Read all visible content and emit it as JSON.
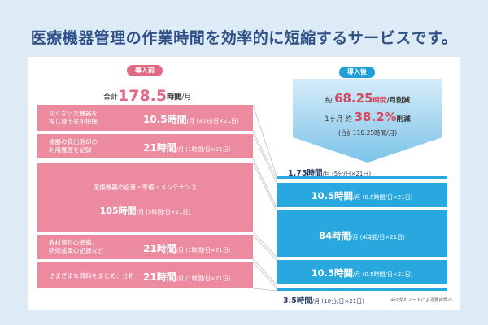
{
  "title": "医療機器管理の作業時間を効率的に短縮するサービスです。",
  "before": {
    "tag": "導入前",
    "total_prefix": "合計",
    "total_value": "178.5",
    "total_unit": "時間",
    "total_suffix": "/月",
    "rows": [
      {
        "label": "なくなった機器を\n探し貸出先を把握",
        "value": "10.5時間",
        "detail": "/月 (30分/日×21日)"
      },
      {
        "label": "機器の貸出返却の\n利用履歴を記録",
        "value": "21時間",
        "detail": "/月 (1時間/日×21日)"
      },
      {
        "label": "医療機器の設置・準備・メンテナンス",
        "value": "105時間",
        "detail": "/月 (5時間/日×21日)"
      },
      {
        "label": "教材資料の準備、\n研修成果の記録など",
        "value": "21時間",
        "detail": "/月 (1時間/日×21日)"
      },
      {
        "label": "さまざまな資料をまとめ、分析",
        "value": "21時間",
        "detail": "/月 (1時間/日×21日)"
      }
    ]
  },
  "after": {
    "tag": "導入後",
    "reduction1": {
      "prefix": "約",
      "value": "68.25",
      "unit": "時間",
      "suffix": "/月削減"
    },
    "reduction2": {
      "prefix": "1ヶ月 約",
      "value": "38.2",
      "unit": "%",
      "suffix": "削減"
    },
    "total_note": "(合計110.25時間/月)",
    "rows": [
      {
        "value": "1.75時間",
        "detail": "/月 (5分/日×21日)"
      },
      {
        "value": "10.5時間",
        "detail": "/月 (0.5時間/日×21日)"
      },
      {
        "value": "84時間",
        "detail": "/月 (4時間/日×21日)"
      },
      {
        "value": "10.5時間",
        "detail": "/月 (0.5時間/日×21日)"
      },
      {
        "value": "3.5時間",
        "detail": "/月 (10分/日×21日)"
      }
    ],
    "note": "※ベダルノートによる独自調べ"
  },
  "colors": {
    "pink": "#ec8aa0",
    "blue": "#29a8e0",
    "title": "#2f4f86",
    "reduction": "#d9455f"
  }
}
